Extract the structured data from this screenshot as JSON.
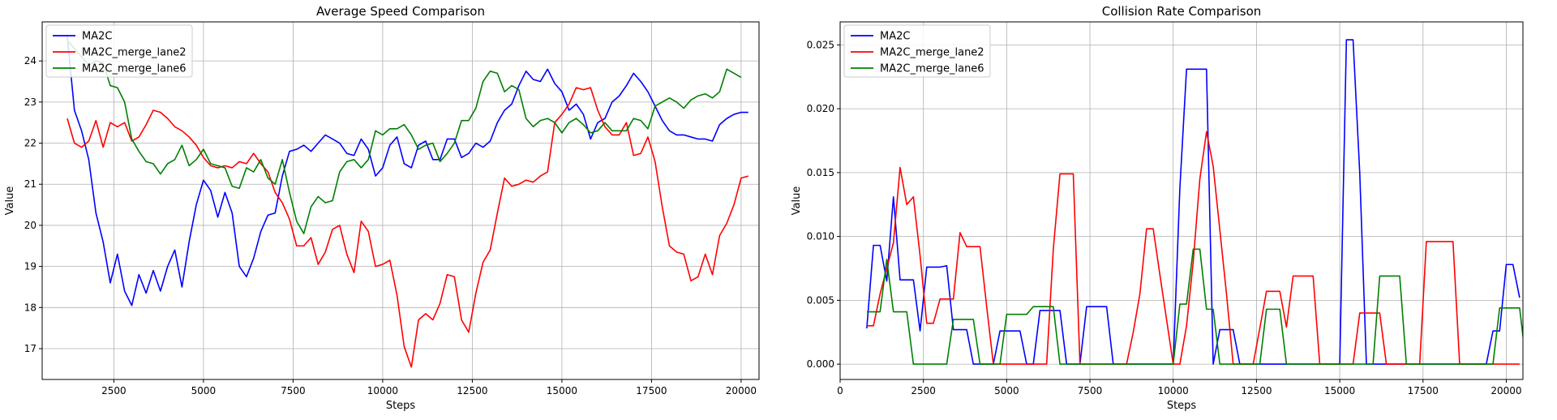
{
  "colors": {
    "MA2C": "#0000ff",
    "MA2C_merge_lane2": "#ff0000",
    "MA2C_merge_lane6": "#008000"
  },
  "chart_data": [
    {
      "type": "line",
      "title": "Average Speed Comparison",
      "xlabel": "Steps",
      "ylabel": "Value",
      "xlim": [
        500,
        20500
      ],
      "ylim": [
        16.25,
        24.95
      ],
      "xticks": [
        2500,
        5000,
        7500,
        10000,
        12500,
        15000,
        17500,
        20000
      ],
      "xtick_labels": [
        "2500",
        "5000",
        "7500",
        "10000",
        "12500",
        "15000",
        "17500",
        "20000"
      ],
      "yticks": [
        17,
        18,
        19,
        20,
        21,
        22,
        23,
        24
      ],
      "ytick_labels": [
        "17",
        "18",
        "19",
        "20",
        "21",
        "22",
        "23",
        "24"
      ],
      "grid": true,
      "legend_position": "top-left",
      "x_start": 1200,
      "x_step": 200,
      "series": [
        {
          "name": "MA2C",
          "color": "#0000ff",
          "values": [
            24.6,
            22.8,
            22.3,
            21.6,
            20.3,
            19.6,
            18.6,
            19.3,
            18.4,
            18.05,
            18.8,
            18.35,
            18.9,
            18.4,
            19.0,
            19.4,
            18.5,
            19.6,
            20.5,
            21.1,
            20.85,
            20.2,
            20.8,
            20.3,
            19.0,
            18.75,
            19.2,
            19.85,
            20.25,
            20.3,
            21.2,
            21.8,
            21.85,
            21.95,
            21.8,
            22.0,
            22.2,
            22.1,
            22.0,
            21.75,
            21.7,
            22.1,
            21.85,
            21.2,
            21.4,
            21.95,
            22.15,
            21.5,
            21.4,
            21.95,
            22.05,
            21.6,
            21.6,
            22.1,
            22.1,
            21.65,
            21.75,
            22.0,
            21.9,
            22.05,
            22.5,
            22.8,
            22.95,
            23.4,
            23.75,
            23.55,
            23.5,
            23.8,
            23.45,
            23.25,
            22.8,
            22.95,
            22.7,
            22.1,
            22.5,
            22.6,
            23.0,
            23.15,
            23.4,
            23.7,
            23.5,
            23.25,
            22.9,
            22.55,
            22.3,
            22.2,
            22.2,
            22.15,
            22.1,
            22.1,
            22.05,
            22.45,
            22.6,
            22.7,
            22.75,
            22.75
          ]
        },
        {
          "name": "MA2C_merge_lane2",
          "color": "#ff0000",
          "values": [
            22.6,
            22.0,
            21.9,
            22.05,
            22.55,
            21.9,
            22.5,
            22.4,
            22.5,
            22.05,
            22.15,
            22.45,
            22.8,
            22.75,
            22.6,
            22.4,
            22.3,
            22.15,
            21.95,
            21.65,
            21.45,
            21.4,
            21.45,
            21.4,
            21.55,
            21.5,
            21.75,
            21.5,
            21.3,
            20.8,
            20.55,
            20.15,
            19.5,
            19.5,
            19.7,
            19.05,
            19.35,
            19.9,
            20.0,
            19.3,
            18.85,
            20.1,
            19.85,
            19.0,
            19.05,
            19.15,
            18.3,
            17.05,
            16.55,
            17.7,
            17.85,
            17.7,
            18.1,
            18.8,
            18.75,
            17.7,
            17.4,
            18.35,
            19.1,
            19.4,
            20.3,
            21.15,
            20.95,
            21.0,
            21.1,
            21.05,
            21.2,
            21.3,
            22.5,
            22.7,
            22.95,
            23.35,
            23.3,
            23.35,
            22.8,
            22.4,
            22.2,
            22.2,
            22.5,
            21.7,
            21.75,
            22.15,
            21.55,
            20.45,
            19.5,
            19.35,
            19.3,
            18.65,
            18.75,
            19.3,
            18.8,
            19.75,
            20.05,
            20.5,
            21.15,
            21.2
          ]
        },
        {
          "name": "MA2C_merge_lane6",
          "color": "#008000",
          "values": [
            24.5,
            24.3,
            24.1,
            23.9,
            24.0,
            23.95,
            23.4,
            23.35,
            23.0,
            22.1,
            21.8,
            21.55,
            21.5,
            21.25,
            21.5,
            21.6,
            21.95,
            21.45,
            21.6,
            21.85,
            21.5,
            21.45,
            21.4,
            20.95,
            20.9,
            21.4,
            21.3,
            21.6,
            21.15,
            21.0,
            21.6,
            20.8,
            20.1,
            19.8,
            20.45,
            20.7,
            20.55,
            20.6,
            21.3,
            21.55,
            21.6,
            21.4,
            21.6,
            22.3,
            22.2,
            22.35,
            22.35,
            22.45,
            22.2,
            21.85,
            21.95,
            22.0,
            21.55,
            21.75,
            22.0,
            22.55,
            22.55,
            22.85,
            23.5,
            23.75,
            23.7,
            23.25,
            23.4,
            23.3,
            22.6,
            22.4,
            22.55,
            22.6,
            22.5,
            22.25,
            22.5,
            22.6,
            22.45,
            22.25,
            22.3,
            22.5,
            22.3,
            22.3,
            22.3,
            22.6,
            22.55,
            22.35,
            22.9,
            23.0,
            23.1,
            23.0,
            22.85,
            23.05,
            23.15,
            23.2,
            23.1,
            23.25,
            23.8,
            23.7,
            23.6
          ]
        }
      ]
    },
    {
      "type": "line",
      "title": "Collision Rate Comparison",
      "xlabel": "Steps",
      "ylabel": "Value",
      "xlim": [
        0,
        20500
      ],
      "ylim": [
        -0.0012,
        0.0268
      ],
      "xticks": [
        0,
        2500,
        5000,
        7500,
        10000,
        12500,
        15000,
        17500,
        20000
      ],
      "xtick_labels": [
        "0",
        "2500",
        "5000",
        "7500",
        "10000",
        "12500",
        "15000",
        "17500",
        "20000"
      ],
      "yticks": [
        0.0,
        0.005,
        0.01,
        0.015,
        0.02,
        0.025
      ],
      "ytick_labels": [
        "0.000",
        "0.005",
        "0.010",
        "0.015",
        "0.020",
        "0.025"
      ],
      "grid": true,
      "legend_position": "top-left",
      "x_start": 800,
      "x_step": 200,
      "series": [
        {
          "name": "MA2C",
          "color": "#0000ff",
          "values": [
            0.0028,
            0.0093,
            0.0093,
            0.0065,
            0.0131,
            0.0066,
            0.0066,
            0.0066,
            0.0026,
            0.0076,
            0.0076,
            0.0076,
            0.0077,
            0.0027,
            0.0027,
            0.0027,
            0.0,
            0.0,
            0.0,
            0.0,
            0.0026,
            0.0026,
            0.0026,
            0.0026,
            0.0,
            0.0,
            0.0042,
            0.0042,
            0.0042,
            0.0042,
            0.0,
            0.0,
            0.0,
            0.0045,
            0.0045,
            0.0045,
            0.0045,
            0.0,
            0.0,
            0.0,
            0.0,
            0.0,
            0.0,
            0.0,
            0.0,
            0.0,
            0.0,
            0.0138,
            0.0231,
            0.0231,
            0.0231,
            0.0231,
            0.0,
            0.0027,
            0.0027,
            0.0027,
            0.0,
            0.0,
            0.0,
            0.0,
            0.0,
            0.0,
            0.0,
            0.0,
            0.0,
            0.0,
            0.0,
            0.0,
            0.0,
            0.0,
            0.0,
            0.0,
            0.0254,
            0.0254,
            0.015,
            0.0,
            0.0,
            0.0,
            0.0,
            0.0,
            0.0,
            0.0,
            0.0,
            0.0,
            0.0,
            0.0,
            0.0,
            0.0,
            0.0,
            0.0,
            0.0,
            0.0,
            0.0,
            0.0,
            0.0026,
            0.0026,
            0.0078,
            0.0078,
            0.0052
          ]
        },
        {
          "name": "MA2C_merge_lane2",
          "color": "#ff0000",
          "values": [
            0.003,
            0.003,
            0.0055,
            0.0075,
            0.0095,
            0.0154,
            0.0125,
            0.0131,
            0.0085,
            0.0032,
            0.0032,
            0.0051,
            0.0051,
            0.0051,
            0.0103,
            0.0092,
            0.0092,
            0.0092,
            0.0045,
            0.0,
            0.0,
            0.0,
            0.0,
            0.0,
            0.0,
            0.0,
            0.0,
            0.0,
            0.009,
            0.0149,
            0.0149,
            0.0149,
            0.0,
            0.0,
            0.0,
            0.0,
            0.0,
            0.0,
            0.0,
            0.0,
            0.0025,
            0.0055,
            0.0106,
            0.0106,
            0.007,
            0.0035,
            0.0,
            0.0,
            0.003,
            0.008,
            0.0145,
            0.0182,
            0.0155,
            0.0105,
            0.0055,
            0.0,
            0.0,
            0.0,
            0.0,
            0.0028,
            0.0057,
            0.0057,
            0.0057,
            0.0029,
            0.0069,
            0.0069,
            0.0069,
            0.0069,
            0.0,
            0.0,
            0.0,
            0.0,
            0.0,
            0.0,
            0.004,
            0.004,
            0.004,
            0.004,
            0.0,
            0.0,
            0.0,
            0.0,
            0.0,
            0.0,
            0.0096,
            0.0096,
            0.0096,
            0.0096,
            0.0096,
            0.0,
            0.0,
            0.0,
            0.0,
            0.0,
            0.0,
            0.0,
            0.0,
            0.0,
            0.0
          ]
        },
        {
          "name": "MA2C_merge_lane6",
          "color": "#008000",
          "values": [
            0.0041,
            0.0041,
            0.0041,
            0.0082,
            0.0041,
            0.0041,
            0.0041,
            0.0,
            0.0,
            0.0,
            0.0,
            0.0,
            0.0,
            0.0035,
            0.0035,
            0.0035,
            0.0035,
            0.0,
            0.0,
            0.0,
            0.0,
            0.0039,
            0.0039,
            0.0039,
            0.0039,
            0.0045,
            0.0045,
            0.0045,
            0.0045,
            0.0,
            0.0,
            0.0,
            0.0,
            0.0,
            0.0,
            0.0,
            0.0,
            0.0,
            0.0,
            0.0,
            0.0,
            0.0,
            0.0,
            0.0,
            0.0,
            0.0,
            0.0,
            0.0047,
            0.0047,
            0.009,
            0.009,
            0.0043,
            0.0043,
            0.0,
            0.0,
            0.0,
            0.0,
            0.0,
            0.0,
            0.0,
            0.0043,
            0.0043,
            0.0043,
            0.0,
            0.0,
            0.0,
            0.0,
            0.0,
            0.0,
            0.0,
            0.0,
            0.0,
            0.0,
            0.0,
            0.0,
            0.0,
            0.0,
            0.0069,
            0.0069,
            0.0069,
            0.0069,
            0.0,
            0.0,
            0.0,
            0.0,
            0.0,
            0.0,
            0.0,
            0.0,
            0.0,
            0.0,
            0.0,
            0.0,
            0.0,
            0.0,
            0.0044,
            0.0044,
            0.0044,
            0.0044,
            0.0,
            0.0,
            0.0,
            0.0,
            0.0,
            0.0,
            0.0,
            0.0,
            0.0,
            0.0,
            0.0
          ]
        }
      ]
    }
  ]
}
